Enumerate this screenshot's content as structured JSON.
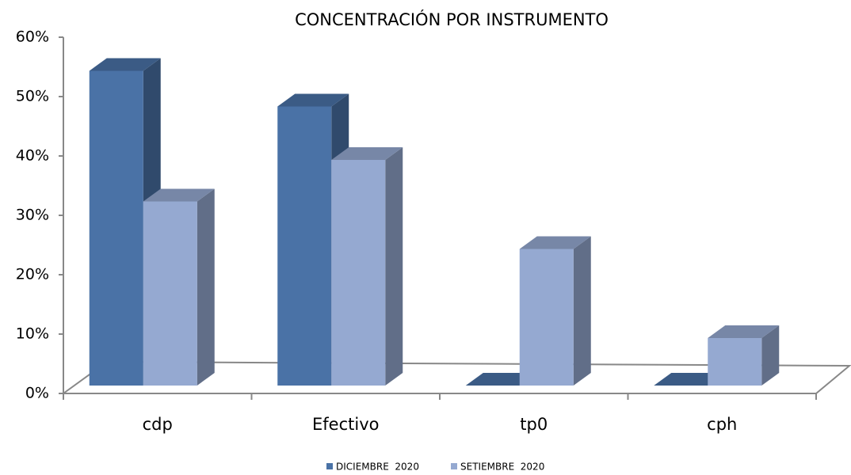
{
  "chart_data": {
    "type": "bar3d",
    "title": "CONCENTRACIÓN POR INSTRUMENTO",
    "categories": [
      "cdp",
      "Efectivo",
      "tp0",
      "cph"
    ],
    "series": [
      {
        "name": "DICIEMBRE  2020",
        "color": "#4a72a6",
        "values": [
          53,
          47,
          0,
          0
        ]
      },
      {
        "name": "SETIEMBRE  2020",
        "color": "#95a9d1",
        "values": [
          31,
          38,
          23,
          8
        ]
      }
    ],
    "ylim": [
      0,
      60
    ],
    "yticks": [
      {
        "value": 0,
        "label": "0%"
      },
      {
        "value": 10,
        "label": "10%"
      },
      {
        "value": 20,
        "label": "20%"
      },
      {
        "value": 30,
        "label": "30%"
      },
      {
        "value": 40,
        "label": "40%"
      },
      {
        "value": 50,
        "label": "50%"
      },
      {
        "value": 60,
        "label": "60%"
      }
    ]
  }
}
